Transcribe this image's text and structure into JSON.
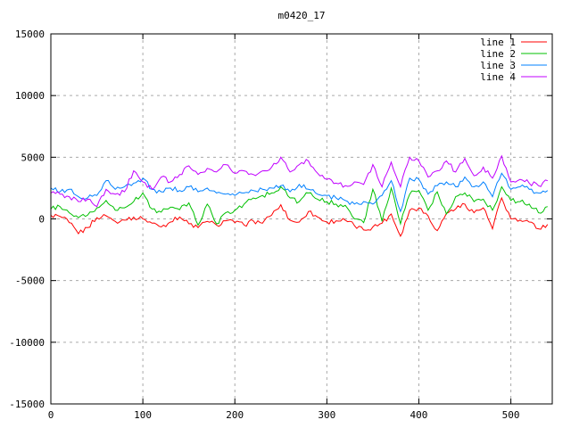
{
  "window": {
    "title": "m0420_17"
  },
  "chart_data": {
    "type": "line",
    "title": "m0420_17",
    "xlabel": "",
    "ylabel": "",
    "xlim": [
      0,
      545
    ],
    "ylim": [
      -15000,
      15000
    ],
    "xticks": [
      0,
      100,
      200,
      300,
      400,
      500
    ],
    "yticks": [
      -15000,
      -10000,
      -5000,
      0,
      5000,
      10000,
      15000
    ],
    "grid": true,
    "grid_style": "dashed",
    "legend_position": "top-right-inside",
    "x_start": 0,
    "x_step": 10,
    "series": [
      {
        "name": "line 1",
        "color": "#ff0000",
        "values": [
          300,
          200,
          -300,
          -1200,
          -700,
          100,
          250,
          -200,
          -100,
          150,
          0,
          -350,
          -650,
          -250,
          150,
          -400,
          -700,
          -200,
          -500,
          -150,
          -300,
          -500,
          -150,
          -350,
          300,
          1150,
          -100,
          -250,
          600,
          150,
          -250,
          -150,
          -100,
          -550,
          -900,
          -650,
          -350,
          400,
          -1400,
          700,
          900,
          250,
          -950,
          450,
          800,
          1200,
          500,
          900,
          -800,
          1700,
          0,
          -100,
          -250,
          -800,
          -450
        ]
      },
      {
        "name": "line 2",
        "color": "#00c000",
        "values": [
          800,
          1000,
          500,
          100,
          300,
          900,
          1500,
          700,
          900,
          1400,
          2100,
          800,
          550,
          950,
          750,
          1300,
          -500,
          1200,
          -400,
          500,
          700,
          1200,
          1700,
          1900,
          2100,
          2600,
          1700,
          1400,
          2100,
          1600,
          1400,
          1200,
          1100,
          0,
          -300,
          2400,
          -200,
          2500,
          -400,
          2000,
          2300,
          700,
          2200,
          400,
          1800,
          2100,
          1400,
          1600,
          700,
          2600,
          1500,
          1400,
          1200,
          500,
          1000
        ]
      },
      {
        "name": "line 3",
        "color": "#0080ff",
        "values": [
          2500,
          2200,
          2400,
          1800,
          1700,
          1900,
          3100,
          2400,
          2600,
          2900,
          3300,
          2400,
          2200,
          2500,
          2300,
          2600,
          2200,
          2500,
          2100,
          2000,
          1900,
          2100,
          2300,
          2400,
          2500,
          2700,
          2200,
          2800,
          2400,
          2000,
          1900,
          1700,
          1500,
          1200,
          1400,
          1200,
          1900,
          3100,
          600,
          3300,
          3200,
          2000,
          2700,
          3000,
          2600,
          3400,
          2600,
          3000,
          1800,
          3700,
          2400,
          2600,
          2400,
          2100,
          2300
        ]
      },
      {
        "name": "line 4",
        "color": "#c000ff",
        "values": [
          2100,
          2000,
          1800,
          1400,
          1600,
          1000,
          2400,
          2000,
          2200,
          3900,
          3000,
          2400,
          3400,
          3000,
          3600,
          4300,
          3600,
          4100,
          3800,
          4400,
          3700,
          3900,
          3600,
          3900,
          4200,
          5000,
          3800,
          4400,
          4700,
          3700,
          3200,
          2900,
          2700,
          3000,
          2800,
          4400,
          2600,
          4600,
          2600,
          5000,
          4700,
          3400,
          3900,
          4700,
          3800,
          4900,
          3500,
          4200,
          3300,
          5100,
          3000,
          3200,
          2900,
          2700,
          3100
        ]
      }
    ]
  },
  "colors": {
    "background": "#ffffff",
    "border": "#000000",
    "grid": "#aaaaaa",
    "text": "#000000"
  }
}
